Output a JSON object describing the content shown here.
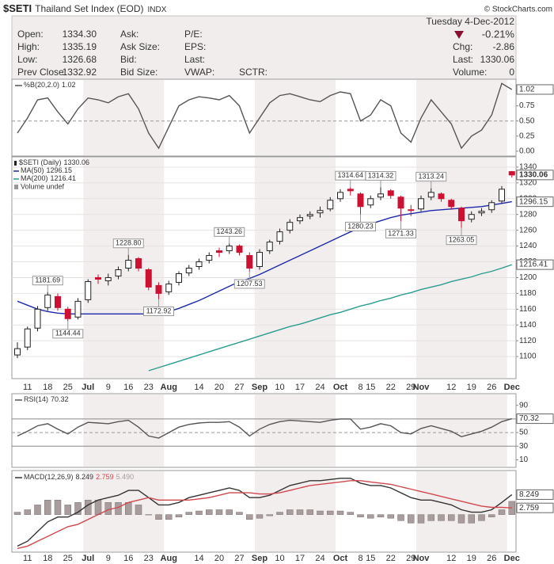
{
  "header": {
    "symbol": "$SETI",
    "name": "Thailand Set Index (EOD)",
    "exchange": "INDX",
    "copyright": "© StockCharts.com",
    "date": "Tuesday 4-Dec-2012",
    "change_pct": "-0.21%",
    "col1": [
      {
        "label": "Open:",
        "value": "1334.30"
      },
      {
        "label": "High:",
        "value": "1335.19"
      },
      {
        "label": "Low:",
        "value": "1326.68"
      },
      {
        "label": "Prev Close:",
        "value": "1332.92"
      }
    ],
    "col2": [
      "Ask:",
      "Ask Size:",
      "Bid:",
      "Bid Size:"
    ],
    "col3": [
      "P/E:",
      "EPS:",
      "Last:",
      "VWAP:"
    ],
    "sctr": "SCTR:",
    "col4": [
      {
        "label": "Chg:",
        "value": "-2.86"
      },
      {
        "label": "Last:",
        "value": "1330.06"
      },
      {
        "label": "Volume:",
        "value": "0"
      }
    ]
  },
  "chart_data": [
    {
      "type": "line",
      "title": "%B(20,2.0)",
      "ylim": [
        -0.08,
        1.19
      ],
      "yticks": [
        {
          "value": 0,
          "label": "0.00"
        },
        {
          "value": 0.25,
          "label": "0.25"
        },
        {
          "value": 0.5,
          "label": "0.50"
        },
        {
          "value": 0.75,
          "label": "0.75"
        },
        {
          "value": 1,
          "label": "1.00"
        }
      ],
      "reference_lines": [
        {
          "value": 0.5,
          "style": "dashed"
        }
      ],
      "series": [
        {
          "name": "%B",
          "color": "#555555",
          "values": [
            0.3,
            0.55,
            0.85,
            0.88,
            0.65,
            0.45,
            0.7,
            0.88,
            0.85,
            0.8,
            0.9,
            0.95,
            0.7,
            0.3,
            0.05,
            0.4,
            0.75,
            0.85,
            0.9,
            0.88,
            0.85,
            0.92,
            0.75,
            0.3,
            0.55,
            0.8,
            0.92,
            0.95,
            0.9,
            0.85,
            0.82,
            0.92,
            0.98,
            0.95,
            0.5,
            0.6,
            0.85,
            0.75,
            0.3,
            0.15,
            0.55,
            0.85,
            0.65,
            0.45,
            0.05,
            0.25,
            0.35,
            0.6,
            1.12,
            1.02
          ]
        }
      ]
    },
    {
      "type": "candlestick",
      "title": "$SETI (Daily)",
      "legend_extra": "Volume undef",
      "ylim": [
        1072,
        1353
      ],
      "yticks": [
        1100,
        1120,
        1140,
        1160,
        1180,
        1200,
        1220,
        1240,
        1260,
        1280,
        1300,
        1320,
        1340
      ],
      "grid": true,
      "up_color": "#ffffff",
      "down_color": "#cc1133",
      "categories": [
        null,
        "11",
        null,
        "18",
        null,
        "25",
        null,
        "Jul",
        null,
        "9",
        null,
        "16",
        null,
        "23",
        null,
        "Aug",
        null,
        null,
        "14",
        null,
        "20",
        null,
        "27",
        null,
        "Sep",
        null,
        "10",
        null,
        "17",
        null,
        "24",
        null,
        "Oct",
        null,
        "8",
        "15",
        null,
        "22",
        null,
        "29",
        "Nov",
        null,
        null,
        "12",
        null,
        "19",
        null,
        "26",
        null,
        "Dec"
      ],
      "open": [
        1102,
        1112,
        1136,
        1162,
        1176,
        1160,
        1150,
        1172,
        1200,
        1196,
        1202,
        1212,
        1224,
        1210,
        1190,
        1182,
        1194,
        1206,
        1214,
        1222,
        1234,
        1234,
        1240,
        1228,
        1214,
        1234,
        1246,
        1260,
        1272,
        1278,
        1282,
        1287,
        1300,
        1312,
        1306,
        1292,
        1302,
        1310,
        1302,
        1286,
        1287,
        1302,
        1306,
        1298,
        1288,
        1274,
        1282,
        1286,
        1297,
        1334.3
      ],
      "high": [
        1118,
        1138,
        1164,
        1181.69,
        1180,
        1163,
        1174,
        1198,
        1204,
        1205,
        1214,
        1228.8,
        1226,
        1212,
        1194,
        1196,
        1208,
        1216,
        1224,
        1232,
        1238,
        1243.26,
        1242,
        1232,
        1236,
        1248,
        1262,
        1274,
        1280,
        1284,
        1290,
        1302,
        1312,
        1314.64,
        1308,
        1304,
        1314.32,
        1312,
        1304,
        1292,
        1304,
        1313.24,
        1308,
        1300,
        1290,
        1284,
        1288,
        1298,
        1316,
        1335.19
      ],
      "low": [
        1098,
        1108,
        1132,
        1158,
        1158,
        1144.44,
        1147,
        1168,
        1192,
        1190,
        1198,
        1208,
        1208,
        1184,
        1172.92,
        1178,
        1190,
        1202,
        1210,
        1218,
        1226,
        1230,
        1228,
        1207.53,
        1210,
        1230,
        1242,
        1256,
        1268,
        1274,
        1276,
        1284,
        1296,
        1304,
        1280.23,
        1288,
        1298,
        1300,
        1271.33,
        1278,
        1284,
        1298,
        1296,
        1286,
        1263.05,
        1270,
        1278,
        1282,
        1294,
        1326.68
      ],
      "close": [
        1110,
        1135,
        1160,
        1178,
        1162,
        1148,
        1170,
        1195,
        1198,
        1200,
        1210,
        1222,
        1212,
        1188,
        1180,
        1192,
        1205,
        1212,
        1220,
        1228,
        1232,
        1240,
        1232,
        1212,
        1232,
        1245,
        1258,
        1270,
        1276,
        1280,
        1285,
        1298,
        1308,
        1310,
        1290,
        1300,
        1306,
        1304,
        1288,
        1285,
        1300,
        1308,
        1300,
        1290,
        1272,
        1280,
        1284,
        1295,
        1312,
        1330.06
      ],
      "high_labels": [
        null,
        null,
        null,
        "1181.69",
        null,
        null,
        null,
        null,
        null,
        null,
        null,
        "1228.80",
        null,
        null,
        null,
        null,
        null,
        null,
        null,
        null,
        null,
        "1243.26",
        null,
        null,
        null,
        null,
        null,
        null,
        null,
        null,
        null,
        null,
        null,
        "1314.64",
        null,
        null,
        "1314.32",
        null,
        null,
        null,
        null,
        "1313.24",
        null,
        null,
        null,
        null,
        null,
        null,
        null,
        null
      ],
      "low_labels": [
        null,
        null,
        null,
        null,
        null,
        "1144.44",
        null,
        null,
        null,
        null,
        null,
        null,
        null,
        null,
        "1172.92",
        null,
        null,
        null,
        null,
        null,
        null,
        null,
        null,
        "1207.53",
        null,
        null,
        null,
        null,
        null,
        null,
        null,
        null,
        null,
        null,
        "1280.23",
        null,
        null,
        null,
        "1271.33",
        null,
        null,
        null,
        null,
        null,
        "1263.05",
        null,
        null,
        null,
        null,
        null
      ],
      "series": [
        {
          "name": "MA(50)",
          "color": "#1c2aa8",
          "values": [
            1170,
            1165,
            1160,
            1157,
            1155,
            1154,
            1154,
            1154,
            1154,
            1154,
            1154,
            1154,
            1154,
            1154,
            1154,
            1157,
            1161,
            1166,
            1171,
            1177,
            1183,
            1189,
            1195,
            1199,
            1204,
            1210,
            1216,
            1222,
            1228,
            1234,
            1240,
            1246,
            1252,
            1258,
            1263,
            1268,
            1272,
            1276,
            1279,
            1281,
            1283,
            1285,
            1286,
            1287,
            1288,
            1289,
            1290,
            1292,
            1294,
            1296.15
          ]
        },
        {
          "name": "MA(200)",
          "color": "#2a9d8f",
          "values": [
            null,
            null,
            null,
            null,
            null,
            null,
            null,
            null,
            null,
            null,
            null,
            null,
            null,
            1082,
            1086,
            1090,
            1094,
            1098,
            1102,
            1106,
            1110,
            1114,
            1118,
            1122,
            1126,
            1130,
            1134,
            1138,
            1141,
            1145,
            1149,
            1153,
            1156,
            1160,
            1164,
            1167,
            1171,
            1174,
            1178,
            1181,
            1185,
            1188,
            1191,
            1195,
            1198,
            1201,
            1205,
            1208,
            1212,
            1216.41
          ]
        }
      ]
    },
    {
      "type": "line",
      "title": "RSI(14)",
      "ylim": [
        -1,
        107
      ],
      "yticks": [
        10,
        30,
        50,
        70,
        90
      ],
      "reference_lines": [
        {
          "value": 70,
          "style": "solid"
        },
        {
          "value": 50,
          "style": "dashed"
        },
        {
          "value": 30,
          "style": "solid"
        }
      ],
      "series": [
        {
          "name": "RSI",
          "color": "#555555",
          "values": [
            45,
            52,
            60,
            63,
            55,
            48,
            58,
            65,
            64,
            63,
            66,
            68,
            58,
            45,
            42,
            50,
            58,
            62,
            64,
            65,
            65,
            66,
            58,
            45,
            55,
            62,
            66,
            68,
            67,
            66,
            65,
            68,
            70,
            70,
            55,
            58,
            63,
            60,
            50,
            48,
            56,
            60,
            56,
            52,
            44,
            48,
            52,
            58,
            66,
            70.32
          ]
        }
      ]
    },
    {
      "type": "combo",
      "title": "MACD(12,26,9)",
      "ylim": [
        -15.5,
        18.2
      ],
      "title_values": [
        "8.249",
        "2.759",
        "5.490"
      ],
      "series": [
        {
          "name": "MACD",
          "type": "line",
          "color": "#333333",
          "values": [
            -13,
            -11,
            -7,
            -3,
            -1,
            -1,
            1,
            4,
            6,
            7,
            8,
            10,
            10,
            7,
            4,
            4,
            5,
            7,
            8,
            9,
            10,
            11,
            10,
            7,
            7,
            8,
            10,
            12,
            13,
            14,
            14,
            14.5,
            15,
            15,
            13,
            12,
            12,
            11,
            9,
            7,
            6,
            6,
            5,
            4,
            2,
            1,
            1,
            2,
            5,
            8.249
          ]
        },
        {
          "name": "Signal",
          "type": "line",
          "color": "#d0484e",
          "values": [
            -14,
            -13,
            -11,
            -9,
            -7,
            -5,
            -4,
            -2,
            0,
            2,
            3,
            5,
            6,
            7,
            6,
            6,
            6,
            6,
            6.5,
            7,
            8,
            9,
            9,
            9,
            8.5,
            8.5,
            9,
            10,
            11,
            12,
            12.5,
            13,
            13.5,
            14,
            14,
            13.5,
            13,
            12.5,
            11.5,
            10.5,
            9.5,
            8.5,
            7.5,
            6.5,
            5.5,
            4.5,
            3.5,
            3,
            3,
            2.759
          ]
        },
        {
          "name": "Histogram",
          "type": "bar",
          "color": "#a89c9c",
          "values": [
            1,
            2,
            4,
            6,
            6,
            4,
            5,
            6,
            6,
            5,
            5,
            5,
            4,
            0,
            -2,
            -2,
            -1,
            1,
            1.5,
            2,
            2,
            2,
            1,
            -2,
            -1.5,
            -0.5,
            1,
            2,
            2,
            2,
            1.5,
            1.5,
            1.5,
            1,
            -1,
            -1.5,
            -1,
            -1.5,
            -2.5,
            -3.5,
            -3.5,
            -2.5,
            -2.5,
            -2.5,
            -3.5,
            -3.5,
            -2.5,
            -1,
            2,
            5.49
          ]
        }
      ]
    }
  ]
}
